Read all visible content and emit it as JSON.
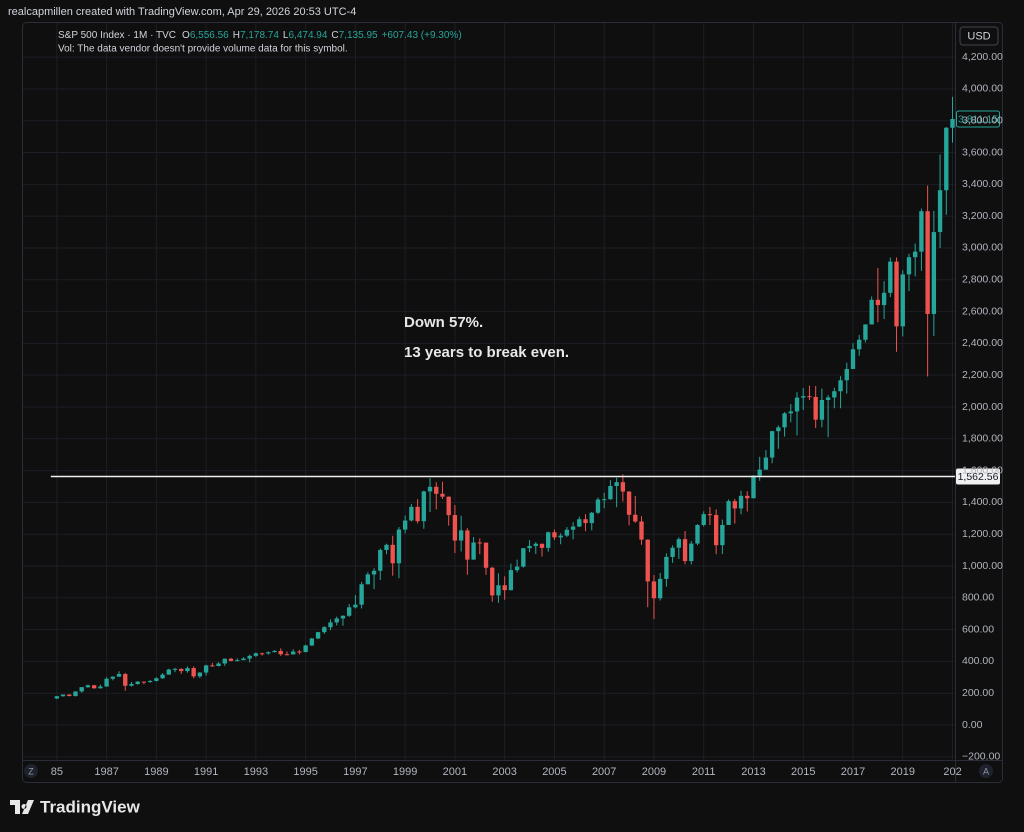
{
  "header": "realcapmillen created with TradingView.com, Apr 29, 2026 20:53 UTC-4",
  "brand": "TradingView",
  "chart_data": {
    "type": "candlestick",
    "title": "S&P 500 Index · 1M · TVC",
    "legend": {
      "items": [
        {
          "key": "O",
          "value": "6,556.56"
        },
        {
          "key": "H",
          "value": "7,178.74"
        },
        {
          "key": "L",
          "value": "6,474.94"
        },
        {
          "key": "C",
          "value": "7,135.95"
        }
      ],
      "change": "+607.43 (+9.30%)",
      "volume_note": "Vol: The data vendor doesn't provide volume data for this symbol."
    },
    "currency": "USD",
    "annotations": [
      "Down 57%.",
      "13 years to break even."
    ],
    "up_color": "#26a69a",
    "down_color": "#ef5350",
    "hline": {
      "value": 1562.56,
      "label": "1,562.56"
    },
    "last_price_label": "3,811.15",
    "axis_buttons": [
      "Z",
      "A"
    ],
    "xlim": [
      1983.6,
      2021.1
    ],
    "xticks": [
      {
        "value": 1985,
        "label": "85"
      },
      1987,
      1989,
      1991,
      1993,
      1995,
      1997,
      1999,
      2001,
      2003,
      2005,
      2007,
      2009,
      2011,
      2013,
      2015,
      2017,
      2019,
      {
        "value": 2021,
        "label": "202"
      }
    ],
    "ylim": [
      -220,
      4421
    ],
    "yticks": [
      {
        "value": -200,
        "label": "−200.00"
      },
      {
        "value": 0,
        "label": "0.00"
      },
      {
        "value": 200,
        "label": "200.00"
      },
      {
        "value": 400,
        "label": "400.00"
      },
      {
        "value": 600,
        "label": "600.00"
      },
      {
        "value": 800,
        "label": "800.00"
      },
      {
        "value": 1000,
        "label": "1,000.00"
      },
      {
        "value": 1200,
        "label": "1,200.00"
      },
      {
        "value": 1400,
        "label": "1,400.00"
      },
      {
        "value": 1600,
        "label": "1,600.00"
      },
      {
        "value": 1800,
        "label": "1,800.00"
      },
      {
        "value": 2000,
        "label": "2,000.00"
      },
      {
        "value": 2200,
        "label": "2,200.00"
      },
      {
        "value": 2400,
        "label": "2,400.00"
      },
      {
        "value": 2600,
        "label": "2,600.00"
      },
      {
        "value": 2800,
        "label": "2,800.00"
      },
      {
        "value": 3000,
        "label": "3,000.00"
      },
      {
        "value": 3200,
        "label": "3,200.00"
      },
      {
        "value": 3400,
        "label": "3,400.00"
      },
      {
        "value": 3600,
        "label": "3,600.00"
      },
      {
        "value": 3800,
        "label": "3,800.00"
      },
      {
        "value": 4000,
        "label": "4,000.00"
      },
      {
        "value": 4200,
        "label": "4,200.00"
      }
    ],
    "grid": true,
    "x": [
      1985,
      1985.25,
      1985.5,
      1985.75,
      1986,
      1986.25,
      1986.5,
      1986.75,
      1987,
      1987.25,
      1987.5,
      1987.75,
      1988,
      1988.25,
      1988.5,
      1988.75,
      1989,
      1989.25,
      1989.5,
      1989.75,
      1990,
      1990.25,
      1990.5,
      1990.75,
      1991,
      1991.25,
      1991.5,
      1991.75,
      1992,
      1992.25,
      1992.5,
      1992.75,
      1993,
      1993.25,
      1993.5,
      1993.75,
      1994,
      1994.25,
      1994.5,
      1994.75,
      1995,
      1995.25,
      1995.5,
      1995.75,
      1996,
      1996.25,
      1996.5,
      1996.75,
      1997,
      1997.25,
      1997.5,
      1997.75,
      1998,
      1998.25,
      1998.5,
      1998.75,
      1999,
      1999.25,
      1999.5,
      1999.75,
      2000,
      2000.25,
      2000.5,
      2000.75,
      2001,
      2001.25,
      2001.5,
      2001.75,
      2002,
      2002.25,
      2002.5,
      2002.75,
      2003,
      2003.25,
      2003.5,
      2003.75,
      2004,
      2004.25,
      2004.5,
      2004.75,
      2005,
      2005.25,
      2005.5,
      2005.75,
      2006,
      2006.25,
      2006.5,
      2006.75,
      2007,
      2007.25,
      2007.5,
      2007.75,
      2008,
      2008.25,
      2008.5,
      2008.75,
      2009,
      2009.25,
      2009.5,
      2009.75,
      2010,
      2010.25,
      2010.5,
      2010.75,
      2011,
      2011.25,
      2011.5,
      2011.75,
      2012,
      2012.25,
      2012.5,
      2012.75,
      2013,
      2013.25,
      2013.5,
      2013.75,
      2014,
      2014.25,
      2014.5,
      2014.75,
      2015,
      2015.25,
      2015.5,
      2015.75,
      2016,
      2016.25,
      2016.5,
      2016.75,
      2017,
      2017.25,
      2017.5,
      2017.75,
      2018,
      2018.25,
      2018.5,
      2018.75,
      2019,
      2019.25,
      2019.5,
      2019.75,
      2020,
      2020.25,
      2020.5,
      2020.75,
      2021
    ],
    "open": [
      167,
      181,
      192,
      182,
      211,
      238,
      250,
      231,
      242,
      291,
      304,
      321,
      247,
      258,
      273,
      271,
      277,
      294,
      317,
      349,
      353,
      339,
      358,
      306,
      330,
      375,
      371,
      387,
      417,
      403,
      408,
      418,
      435,
      451,
      450,
      458,
      466,
      445,
      444,
      462,
      459,
      500,
      544,
      584,
      615,
      645,
      670,
      687,
      740,
      757,
      885,
      947,
      970,
      1101,
      1133,
      1017,
      1229,
      1286,
      1372,
      1282,
      1469,
      1498,
      1454,
      1436,
      1320,
      1160,
      1224,
      1040,
      1148,
      1147,
      989,
      815,
      879,
      848,
      974,
      996,
      1112,
      1126,
      1140,
      1114,
      1212,
      1180,
      1191,
      1228,
      1248,
      1294,
      1270,
      1335,
      1418,
      1420,
      1503,
      1527,
      1468,
      1322,
      1280,
      1166,
      903,
      797,
      919,
      1057,
      1115,
      1169,
      1031,
      1141,
      1258,
      1326,
      1321,
      1131,
      1258,
      1408,
      1362,
      1441,
      1426,
      1569,
      1606,
      1682,
      1848,
      1872,
      1960,
      1972,
      2059,
      2068,
      2063,
      1920,
      2044,
      2060,
      2099,
      2168,
      2239,
      2363,
      2423,
      2519,
      2674,
      2641,
      2718,
      2914,
      2507,
      2834,
      2942,
      2977,
      3231,
      2585,
      3100,
      3363,
      3756
    ],
    "high": [
      183,
      192,
      193,
      212,
      239,
      254,
      253,
      254,
      301,
      306,
      338,
      328,
      271,
      276,
      274,
      284,
      300,
      327,
      354,
      360,
      357,
      369,
      369,
      332,
      379,
      391,
      395,
      418,
      422,
      420,
      426,
      442,
      456,
      455,
      463,
      471,
      482,
      462,
      476,
      472,
      505,
      548,
      586,
      622,
      664,
      682,
      690,
      761,
      817,
      900,
      961,
      986,
      1110,
      1140,
      1190,
      1245,
      1317,
      1390,
      1420,
      1474,
      1553,
      1527,
      1530,
      1437,
      1383,
      1316,
      1238,
      1182,
      1174,
      1147,
      994,
      954,
      935,
      1015,
      1040,
      1112,
      1163,
      1150,
      1140,
      1217,
      1229,
      1206,
      1245,
      1275,
      1310,
      1326,
      1340,
      1431,
      1461,
      1540,
      1555,
      1576,
      1471,
      1440,
      1313,
      1167,
      943,
      956,
      1080,
      1130,
      1180,
      1220,
      1157,
      1263,
      1344,
      1371,
      1356,
      1292,
      1419,
      1422,
      1474,
      1470,
      1570,
      1687,
      1729,
      1849,
      1884,
      1968,
      2019,
      2093,
      2119,
      2134,
      2132,
      2116,
      2075,
      2121,
      2194,
      2278,
      2401,
      2453,
      2520,
      2695,
      2873,
      2791,
      2940,
      2940,
      2860,
      2964,
      3028,
      3248,
      3393,
      3233,
      3588,
      3760,
      3950
    ],
    "low": [
      163,
      178,
      180,
      180,
      203,
      233,
      228,
      229,
      241,
      281,
      303,
      216,
      242,
      253,
      256,
      265,
      274,
      290,
      316,
      332,
      322,
      329,
      294,
      295,
      311,
      366,
      369,
      372,
      400,
      400,
      408,
      394,
      428,
      437,
      442,
      457,
      435,
      438,
      443,
      444,
      457,
      498,
      540,
      573,
      597,
      626,
      624,
      680,
      733,
      733,
      885,
      855,
      912,
      1074,
      939,
      923,
      1205,
      1280,
      1268,
      1234,
      1339,
      1356,
      1422,
      1254,
      1081,
      1091,
      945,
      1040,
      1074,
      944,
      775,
      768,
      788,
      847,
      960,
      990,
      1087,
      1076,
      1060,
      1090,
      1163,
      1137,
      1183,
      1168,
      1245,
      1219,
      1224,
      1327,
      1363,
      1416,
      1370,
      1406,
      1256,
      1272,
      1133,
      741,
      667,
      783,
      869,
      1020,
      1044,
      1011,
      1010,
      1131,
      1249,
      1258,
      1074,
      1075,
      1258,
      1267,
      1325,
      1343,
      1426,
      1536,
      1605,
      1646,
      1737,
      1814,
      1904,
      1821,
      1981,
      2044,
      1867,
      1872,
      1810,
      1992,
      1992,
      2084,
      2245,
      2322,
      2406,
      2520,
      2533,
      2553,
      2691,
      2347,
      2444,
      2729,
      2822,
      2856,
      2192,
      2447,
      3000,
      3209,
      3662
    ],
    "close": [
      181,
      192,
      182,
      211,
      238,
      250,
      231,
      242,
      291,
      304,
      321,
      247,
      258,
      273,
      271,
      277,
      294,
      317,
      349,
      353,
      339,
      358,
      306,
      330,
      375,
      371,
      387,
      417,
      403,
      408,
      418,
      435,
      451,
      450,
      458,
      466,
      445,
      444,
      462,
      459,
      500,
      544,
      584,
      615,
      645,
      670,
      687,
      740,
      757,
      885,
      947,
      970,
      1101,
      1133,
      1017,
      1229,
      1286,
      1372,
      1282,
      1469,
      1498,
      1454,
      1436,
      1320,
      1160,
      1224,
      1040,
      1148,
      1147,
      989,
      815,
      879,
      848,
      974,
      996,
      1112,
      1126,
      1140,
      1114,
      1212,
      1180,
      1191,
      1228,
      1248,
      1294,
      1270,
      1335,
      1418,
      1420,
      1503,
      1527,
      1468,
      1322,
      1280,
      1166,
      903,
      797,
      919,
      1057,
      1115,
      1169,
      1031,
      1141,
      1258,
      1326,
      1321,
      1131,
      1258,
      1408,
      1362,
      1441,
      1426,
      1569,
      1606,
      1682,
      1848,
      1872,
      1960,
      1972,
      2059,
      2068,
      2063,
      1920,
      2044,
      2060,
      2099,
      2168,
      2239,
      2363,
      2423,
      2519,
      2674,
      2641,
      2718,
      2914,
      2507,
      2834,
      2942,
      2977,
      3231,
      2585,
      3100,
      3363,
      3756,
      3811.15
    ]
  }
}
